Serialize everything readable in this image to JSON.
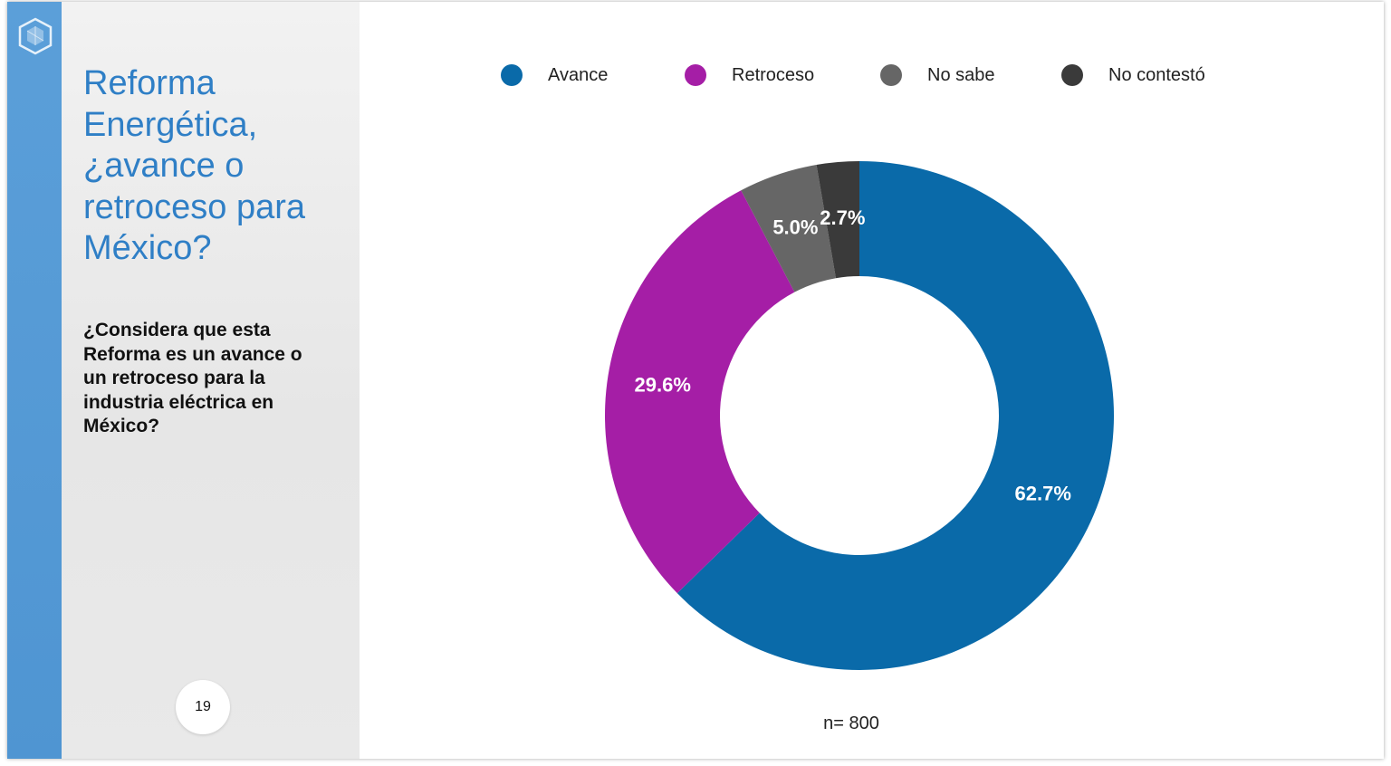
{
  "slide": {
    "title": "Reforma Energética, ¿avance o retroceso para México?",
    "question": "¿Considera que esta Reforma es un avance o un retroceso para la industria eléctrica en México?",
    "page_number": "19",
    "logo_icon": "hexagon-logo-icon",
    "accent_color": "#5b9fd9"
  },
  "chart_data": {
    "type": "pie",
    "variant": "donut",
    "legend_position": "top",
    "categories": [
      "Avance",
      "Retroceso",
      "No sabe",
      "No contestó"
    ],
    "values": [
      62.7,
      29.6,
      5.0,
      2.7
    ],
    "labels": [
      "62.7%",
      "29.6%",
      "5.0%",
      "2.7%"
    ],
    "colors": [
      "#0a6aa9",
      "#a51ea6",
      "#666666",
      "#3a3a3a"
    ],
    "note": "n= 800"
  }
}
